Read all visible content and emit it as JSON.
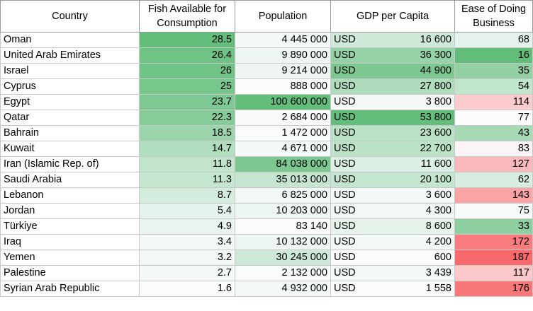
{
  "headers": [
    "Country",
    "Fish Available for Consumption",
    "Population",
    "GDP per Capita",
    "Ease of Doing Business"
  ],
  "currency": "USD",
  "rows": [
    {
      "country": "Oman",
      "fish": "28.5",
      "population": "4 445 000",
      "gdp": "16 600",
      "ease": "68"
    },
    {
      "country": "United Arab Emirates",
      "fish": "26.4",
      "population": "9 890 000",
      "gdp": "36 300",
      "ease": "16"
    },
    {
      "country": "Israel",
      "fish": "26",
      "population": "9 214 000",
      "gdp": "44 900",
      "ease": "35"
    },
    {
      "country": "Cyprus",
      "fish": "25",
      "population": "888 000",
      "gdp": "27 800",
      "ease": "54"
    },
    {
      "country": "Egypt",
      "fish": "23.7",
      "population": "100 600 000",
      "gdp": "3 800",
      "ease": "114"
    },
    {
      "country": "Qatar",
      "fish": "22.3",
      "population": "2 684 000",
      "gdp": "53 800",
      "ease": "77"
    },
    {
      "country": "Bahrain",
      "fish": "18.5",
      "population": "1 472 000",
      "gdp": "23 600",
      "ease": "43"
    },
    {
      "country": "Kuwait",
      "fish": "14.7",
      "population": "4 671 000",
      "gdp": "22 700",
      "ease": "83"
    },
    {
      "country": "Iran (Islamic Rep. of)",
      "fish": "11.8",
      "population": "84 038 000",
      "gdp": "11 600",
      "ease": "127"
    },
    {
      "country": "Saudi Arabia",
      "fish": "11.3",
      "population": "35 013 000",
      "gdp": "20 100",
      "ease": "62"
    },
    {
      "country": "Lebanon",
      "fish": "8.7",
      "population": "6 825 000",
      "gdp": "3 600",
      "ease": "143"
    },
    {
      "country": "Jordan",
      "fish": "5.4",
      "population": "10 203 000",
      "gdp": "4 300",
      "ease": "75"
    },
    {
      "country": "Türkiye",
      "fish": "4.9",
      "population": "83 140",
      "gdp": "8 600",
      "ease": "33"
    },
    {
      "country": "Iraq",
      "fish": "3.4",
      "population": "10 132 000",
      "gdp": "4 200",
      "ease": "172"
    },
    {
      "country": "Yemen",
      "fish": "3.2",
      "population": "30 245 000",
      "gdp": "600",
      "ease": "187"
    },
    {
      "country": "Palestine",
      "fish": "2.7",
      "population": "2 132 000",
      "gdp": "3 439",
      "ease": "117"
    },
    {
      "country": "Syrian Arab Republic",
      "fish": "1.6",
      "population": "4 932 000",
      "gdp": "1 558",
      "ease": "176"
    }
  ],
  "colors": {
    "green_max": "#63be7b",
    "white": "#fcfcff",
    "red_max": "#f8696b",
    "border": "#c8c8c8",
    "header_border": "#9a9a9a"
  }
}
